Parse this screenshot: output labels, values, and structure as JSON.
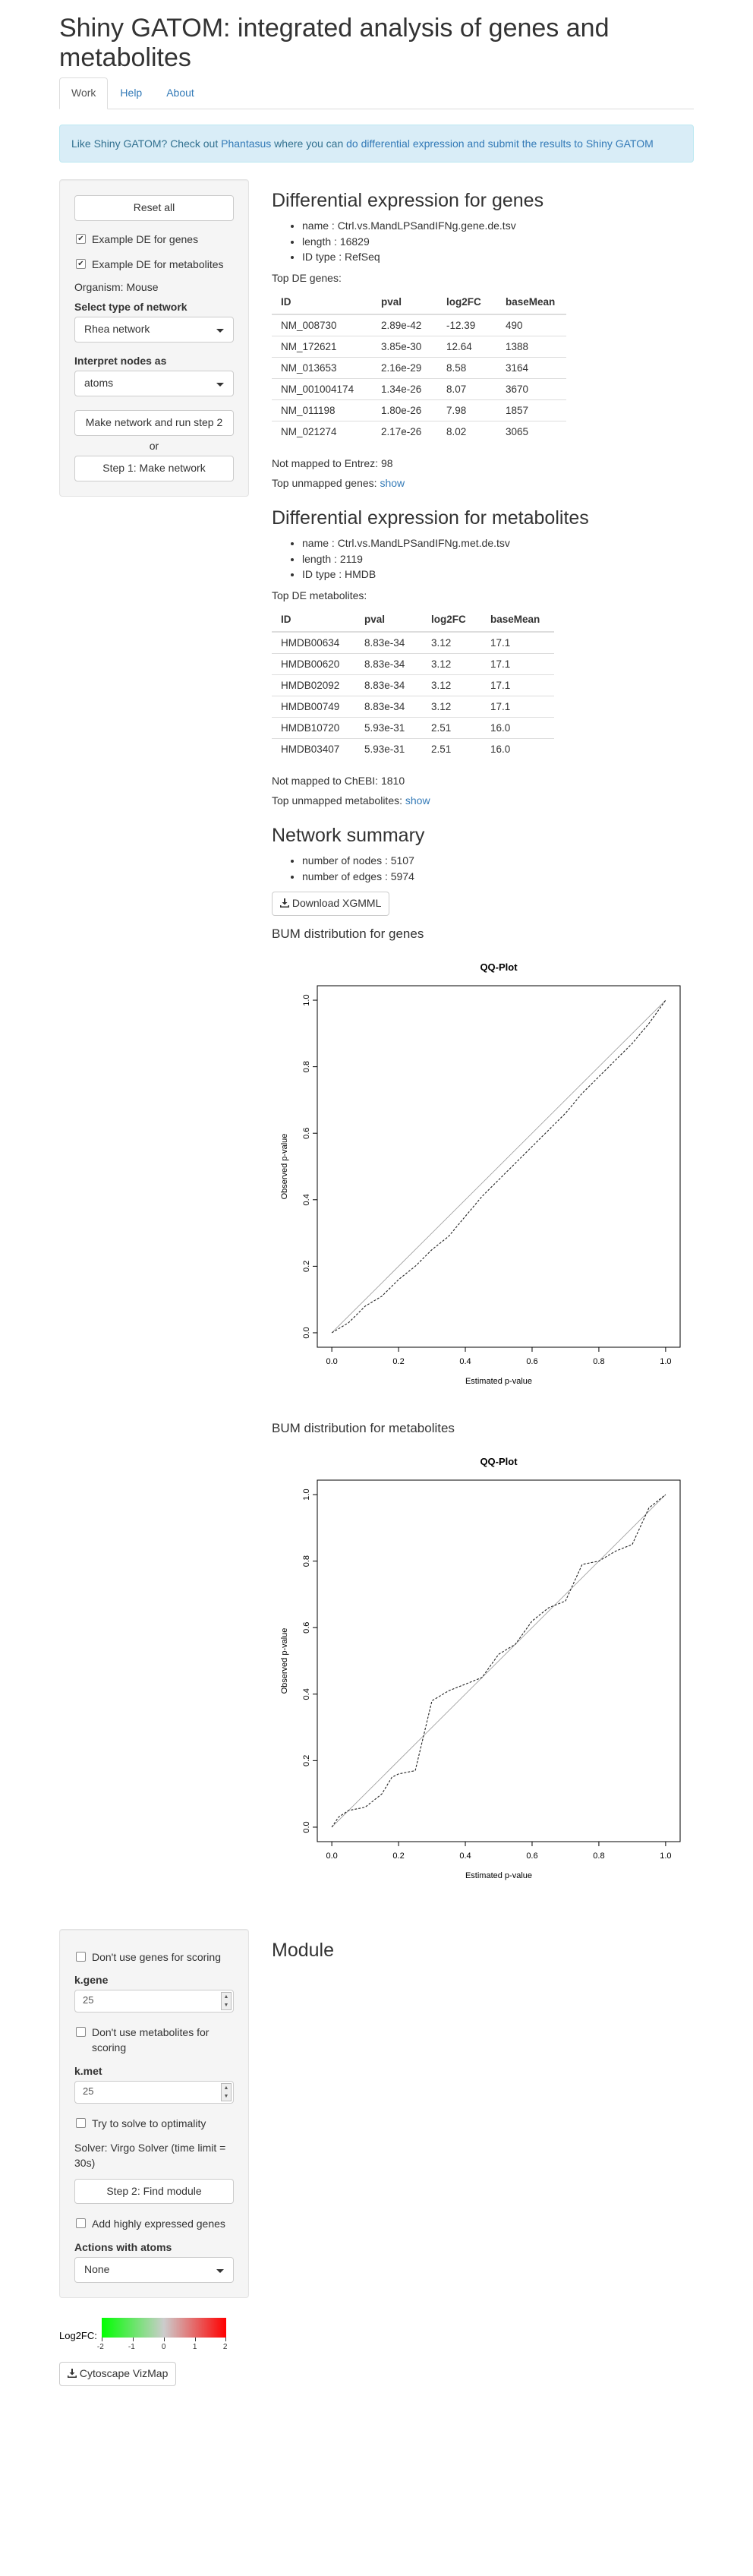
{
  "app": {
    "title": "Shiny GATOM: integrated analysis of genes and metabolites"
  },
  "tabs": [
    {
      "label": "Work"
    },
    {
      "label": "Help"
    },
    {
      "label": "About"
    }
  ],
  "banner": {
    "text1": "Like Shiny GATOM? Check out ",
    "link1": "Phantasus",
    "text2": " where you can ",
    "link2": "do differential expression and submit the results to Shiny GATOM"
  },
  "sidebar": {
    "reset_label": "Reset all",
    "example_genes_label": "Example DE for genes",
    "example_genes_checked": true,
    "example_mets_label": "Example DE for metabolites",
    "example_mets_checked": true,
    "organism": "Organism: Mouse",
    "network_type_label": "Select type of network",
    "network_type_value": "Rhea network",
    "interpret_label": "Interpret nodes as",
    "interpret_value": "atoms",
    "make_run_label": "Make network and run step 2",
    "or_label": "or",
    "step1_label": "Step 1: Make network"
  },
  "sidebar2": {
    "no_genes_label": "Don't use genes for scoring",
    "k_gene_label": "k.gene",
    "k_gene_value": "25",
    "no_mets_label": "Don't use metabolites for scoring",
    "k_met_label": "k.met",
    "k_met_value": "25",
    "optimality_label": "Try to solve to optimality",
    "solver_text": "Solver: Virgo Solver (time limit = 30s)",
    "step2_label": "Step 2: Find module",
    "add_genes_label": "Add highly expressed genes",
    "actions_label": "Actions with atoms",
    "actions_value": "None"
  },
  "de_genes": {
    "title": "Differential expression for genes",
    "name": "name : Ctrl.vs.MandLPSandIFNg.gene.de.tsv",
    "length": "length : 16829",
    "idtype": "ID type : RefSeq",
    "top_label": "Top DE genes:",
    "columns": [
      "ID",
      "pval",
      "log2FC",
      "baseMean"
    ],
    "rows": [
      [
        "NM_008730",
        "2.89e-42",
        "-12.39",
        "490"
      ],
      [
        "NM_172621",
        "3.85e-30",
        "12.64",
        "1388"
      ],
      [
        "NM_013653",
        "2.16e-29",
        "8.58",
        "3164"
      ],
      [
        "NM_001004174",
        "1.34e-26",
        "8.07",
        "3670"
      ],
      [
        "NM_011198",
        "1.80e-26",
        "7.98",
        "1857"
      ],
      [
        "NM_021274",
        "2.17e-26",
        "8.02",
        "3065"
      ]
    ],
    "not_mapped": "Not mapped to Entrez: 98",
    "top_unmapped": "Top unmapped genes:",
    "show_label": "show"
  },
  "de_mets": {
    "title": "Differential expression for metabolites",
    "name": "name : Ctrl.vs.MandLPSandIFNg.met.de.tsv",
    "length": "length : 2119",
    "idtype": "ID type : HMDB",
    "top_label": "Top DE metabolites:",
    "columns": [
      "ID",
      "pval",
      "log2FC",
      "baseMean"
    ],
    "rows": [
      [
        "HMDB00634",
        "8.83e-34",
        "3.12",
        "17.1"
      ],
      [
        "HMDB00620",
        "8.83e-34",
        "3.12",
        "17.1"
      ],
      [
        "HMDB02092",
        "8.83e-34",
        "3.12",
        "17.1"
      ],
      [
        "HMDB00749",
        "8.83e-34",
        "3.12",
        "17.1"
      ],
      [
        "HMDB10720",
        "5.93e-31",
        "2.51",
        "16.0"
      ],
      [
        "HMDB03407",
        "5.93e-31",
        "2.51",
        "16.0"
      ]
    ],
    "not_mapped": "Not mapped to ChEBI: 1810",
    "top_unmapped": "Top unmapped metabolites:",
    "show_label": "show"
  },
  "network": {
    "title": "Network summary",
    "nodes": "number of nodes : 5107",
    "edges": "number of edges : 5974",
    "download_label": "Download XGMML"
  },
  "bum_genes_title": "BUM distribution for genes",
  "bum_mets_title": "BUM distribution for metabolites",
  "module_title": "Module",
  "legend": {
    "label": "Log2FC:",
    "ticks": [
      "-2",
      "-1",
      "0",
      "1",
      "2"
    ],
    "low_color": "#00ff00",
    "mid_color": "#cccccc",
    "high_color": "#ff0000"
  },
  "vizmap_label": "Cytoscape VizMap",
  "chart_data": [
    {
      "type": "line",
      "title": "QQ-Plot",
      "xlabel": "Estimated p-value",
      "ylabel": "Observed p-value",
      "xlim": [
        0,
        1
      ],
      "ylim": [
        0,
        1
      ],
      "x_ticks": [
        "0.0",
        "0.2",
        "0.4",
        "0.6",
        "0.8",
        "1.0"
      ],
      "y_ticks": [
        "0.0",
        "0.2",
        "0.4",
        "0.6",
        "0.8",
        "1.0"
      ],
      "series": [
        {
          "x": [
            0,
            0.05,
            0.1,
            0.15,
            0.2,
            0.25,
            0.3,
            0.35,
            0.4,
            0.45,
            0.5,
            0.55,
            0.6,
            0.65,
            0.7,
            0.75,
            0.8,
            0.85,
            0.9,
            0.95,
            1.0
          ],
          "y": [
            0,
            0.03,
            0.08,
            0.11,
            0.16,
            0.2,
            0.25,
            0.29,
            0.35,
            0.41,
            0.46,
            0.51,
            0.56,
            0.61,
            0.66,
            0.72,
            0.77,
            0.82,
            0.87,
            0.93,
            1.0
          ]
        }
      ]
    },
    {
      "type": "line",
      "title": "QQ-Plot",
      "xlabel": "Estimated p-value",
      "ylabel": "Observed p-value",
      "xlim": [
        0,
        1
      ],
      "ylim": [
        0,
        1
      ],
      "x_ticks": [
        "0.0",
        "0.2",
        "0.4",
        "0.6",
        "0.8",
        "1.0"
      ],
      "y_ticks": [
        "0.0",
        "0.2",
        "0.4",
        "0.6",
        "0.8",
        "1.0"
      ],
      "series": [
        {
          "x": [
            0,
            0.02,
            0.05,
            0.1,
            0.15,
            0.18,
            0.2,
            0.25,
            0.3,
            0.35,
            0.4,
            0.45,
            0.5,
            0.55,
            0.6,
            0.65,
            0.7,
            0.75,
            0.8,
            0.85,
            0.9,
            0.95,
            1.0
          ],
          "y": [
            0,
            0.03,
            0.05,
            0.06,
            0.1,
            0.15,
            0.16,
            0.17,
            0.38,
            0.41,
            0.43,
            0.45,
            0.52,
            0.55,
            0.62,
            0.66,
            0.68,
            0.79,
            0.8,
            0.83,
            0.85,
            0.96,
            1.0
          ]
        }
      ]
    }
  ]
}
